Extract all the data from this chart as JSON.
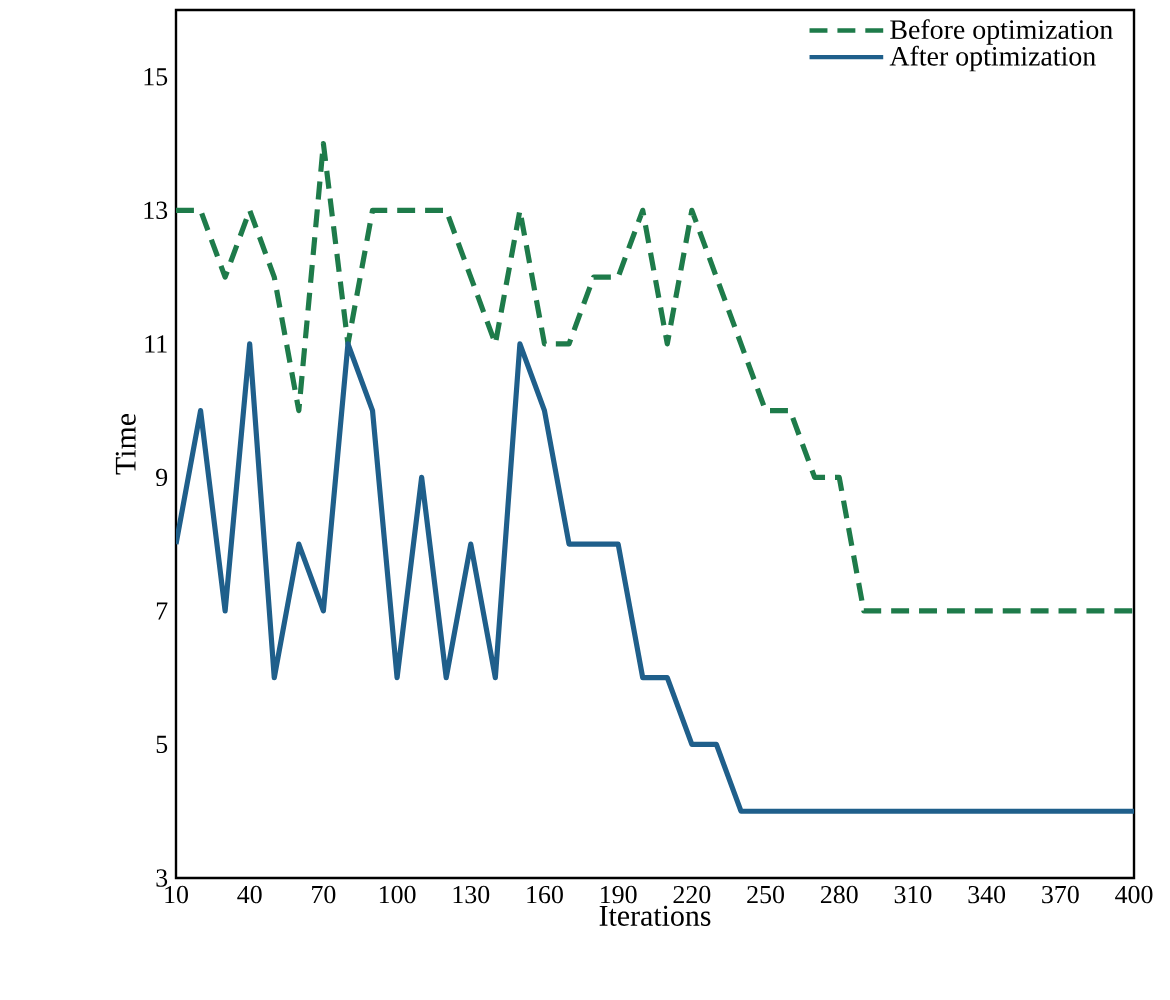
{
  "chart_data": {
    "type": "line",
    "xlabel": "Iterations",
    "ylabel": "Time",
    "x": [
      10,
      20,
      30,
      40,
      50,
      60,
      70,
      80,
      90,
      100,
      110,
      120,
      130,
      140,
      150,
      160,
      170,
      180,
      190,
      200,
      210,
      220,
      230,
      240,
      250,
      260,
      270,
      280,
      290,
      300,
      310,
      320,
      330,
      340,
      350,
      360,
      370,
      380,
      390,
      400
    ],
    "series": [
      {
        "name": "Before optimization",
        "color": "#1e7b4a",
        "line_style": "dashed",
        "values": [
          13,
          13,
          12,
          13,
          12,
          10,
          14,
          11,
          13,
          13,
          13,
          13,
          12,
          11,
          13,
          11,
          11,
          12,
          12,
          13,
          11,
          13,
          12,
          11,
          10,
          10,
          9,
          9,
          7,
          7,
          7,
          7,
          7,
          7,
          7,
          7,
          7,
          7,
          7,
          7
        ]
      },
      {
        "name": "After optimization",
        "color": "#1f5f8b",
        "line_style": "solid",
        "values": [
          8,
          10,
          7,
          11,
          6,
          8,
          7,
          11,
          10,
          6,
          9,
          6,
          8,
          6,
          11,
          10,
          8,
          8,
          8,
          6,
          6,
          5,
          5,
          4,
          4,
          4,
          4,
          4,
          4,
          4,
          4,
          4,
          4,
          4,
          4,
          4,
          4,
          4,
          4,
          4
        ]
      }
    ],
    "xlim": [
      10,
      400
    ],
    "xticks": [
      10,
      40,
      70,
      100,
      130,
      160,
      190,
      220,
      250,
      280,
      310,
      340,
      370,
      400
    ],
    "ylim": [
      3,
      16
    ],
    "yticks": [
      3,
      5,
      7,
      9,
      11,
      13,
      15
    ],
    "grid": false,
    "legend": "top right",
    "marker": "none"
  }
}
